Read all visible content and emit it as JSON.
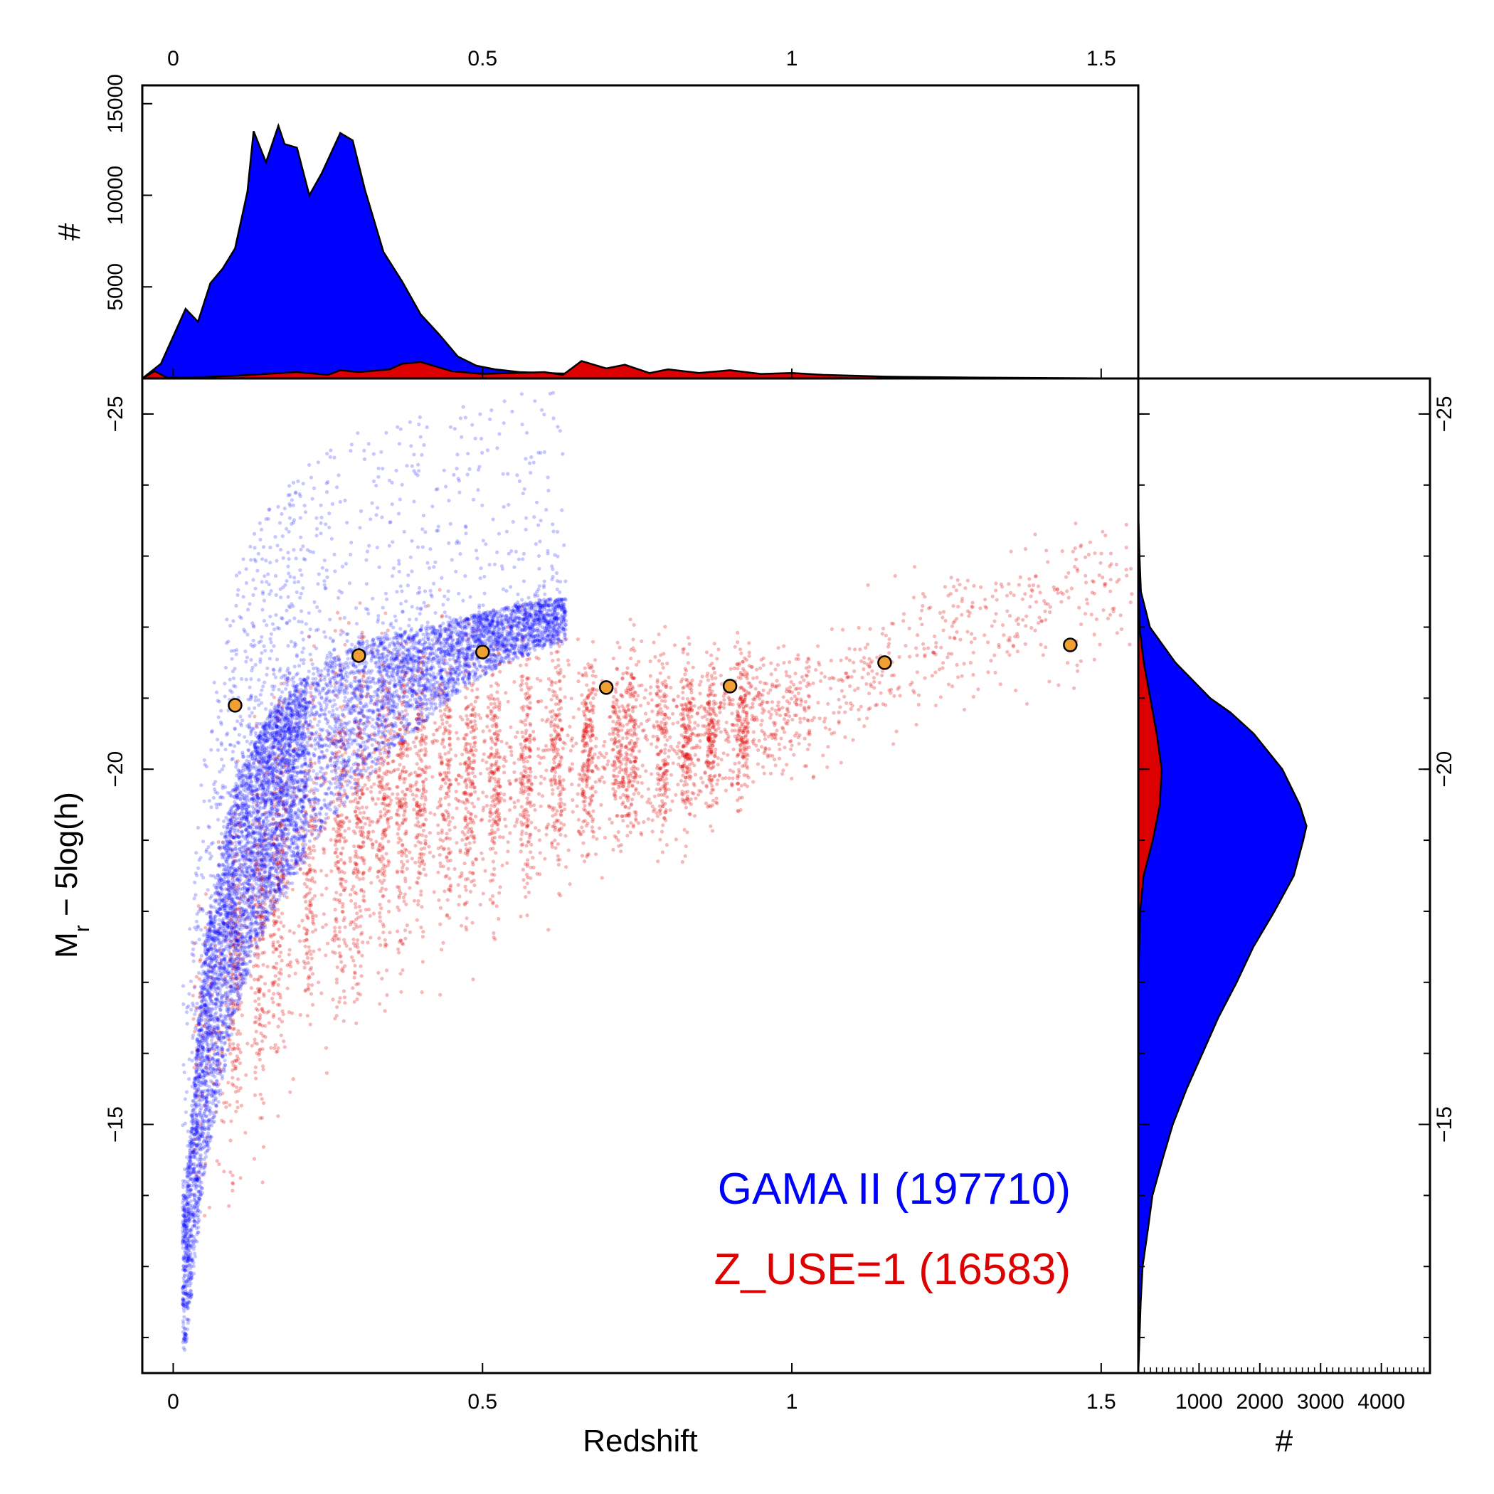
{
  "chart_data": [
    {
      "panel": "top-histogram",
      "type": "area",
      "xlabel": "",
      "ylabel": "#",
      "xlim": [
        -0.05,
        1.56
      ],
      "ylim": [
        0,
        16000
      ],
      "x_ticks": [
        0,
        0.5,
        1,
        1.5
      ],
      "x_tick_labels": [
        "0",
        "0.5",
        "1",
        "1.5"
      ],
      "y_ticks": [
        5000,
        10000,
        15000
      ],
      "y_tick_labels": [
        "5000",
        "10000",
        "15000"
      ],
      "series": [
        {
          "name": "GAMA II (197710)",
          "color": "#0000ff",
          "x": [
            -0.05,
            -0.02,
            0.0,
            0.02,
            0.04,
            0.06,
            0.08,
            0.1,
            0.12,
            0.13,
            0.15,
            0.17,
            0.18,
            0.2,
            0.22,
            0.24,
            0.27,
            0.29,
            0.31,
            0.34,
            0.37,
            0.4,
            0.43,
            0.46,
            0.49,
            0.52,
            0.56,
            0.6,
            0.7,
            0.8,
            0.9,
            1.0,
            1.1,
            1.2,
            1.3,
            1.4,
            1.5,
            1.56
          ],
          "values": [
            0,
            800,
            2300,
            3800,
            3100,
            5200,
            6000,
            7100,
            10200,
            13500,
            11800,
            13800,
            12800,
            12600,
            10000,
            11200,
            13400,
            13000,
            10300,
            6900,
            5300,
            3500,
            2400,
            1200,
            700,
            500,
            350,
            300,
            200,
            150,
            100,
            80,
            60,
            40,
            20,
            10,
            5,
            0
          ]
        },
        {
          "name": "Z_USE=1 (16583)",
          "color": "#dd0000",
          "x": [
            -0.05,
            -0.03,
            -0.01,
            0.05,
            0.1,
            0.15,
            0.2,
            0.25,
            0.27,
            0.3,
            0.35,
            0.37,
            0.4,
            0.45,
            0.5,
            0.55,
            0.6,
            0.63,
            0.66,
            0.7,
            0.73,
            0.77,
            0.8,
            0.85,
            0.9,
            0.95,
            1.0,
            1.05,
            1.1,
            1.15,
            1.2,
            1.3,
            1.4,
            1.5,
            1.56
          ],
          "values": [
            0,
            400,
            50,
            80,
            150,
            250,
            350,
            200,
            450,
            350,
            500,
            800,
            900,
            400,
            250,
            300,
            350,
            200,
            950,
            550,
            750,
            300,
            500,
            300,
            450,
            250,
            300,
            200,
            150,
            100,
            80,
            50,
            30,
            10,
            0
          ]
        }
      ]
    },
    {
      "panel": "main-scatter",
      "type": "scatter",
      "xlabel": "Redshift",
      "ylabel_main": "M",
      "ylabel_sub": "r",
      "ylabel_rest": " − 5log(h)",
      "xlim": [
        -0.05,
        1.56
      ],
      "ylim": [
        -11.5,
        -25.5
      ],
      "x_ticks": [
        0,
        0.5,
        1,
        1.5
      ],
      "x_tick_labels": [
        "0",
        "0.5",
        "1",
        "1.5"
      ],
      "y_ticks": [
        -15,
        -20,
        -25
      ],
      "y_tick_labels": [
        "−15",
        "−20",
        "−25"
      ],
      "series": [
        {
          "name": "GAMA II (197710)",
          "color": "#0000ff",
          "n_points": 197710,
          "envelope": {
            "z": [
              0.02,
              0.05,
              0.1,
              0.15,
              0.2,
              0.25,
              0.3,
              0.35,
              0.4,
              0.45,
              0.5,
              0.55,
              0.6,
              0.65
            ],
            "faint_limit": [
              -11.8,
              -14.2,
              -16.5,
              -17.8,
              -18.5,
              -19.2,
              -19.7,
              -20.2,
              -20.6,
              -21.0,
              -21.3,
              -21.5,
              -21.7,
              -21.8
            ],
            "dense_bright": [
              -14.0,
              -17.5,
              -19.8,
              -20.7,
              -21.2,
              -21.5,
              -21.8,
              -21.9,
              -22.0,
              -22.1,
              -22.2,
              -22.3,
              -22.4,
              -22.4
            ]
          }
        },
        {
          "name": "Z_USE=1 (16583)",
          "color": "#dd0000",
          "n_points": 16583,
          "envelope": {
            "z": [
              0.05,
              0.15,
              0.25,
              0.35,
              0.45,
              0.55,
              0.65,
              0.75,
              0.85,
              0.95,
              1.05,
              1.15,
              1.3,
              1.5
            ],
            "center": [
              -16.0,
              -18.0,
              -19.0,
              -19.6,
              -19.8,
              -20.0,
              -20.2,
              -20.3,
              -20.4,
              -20.7,
              -21.0,
              -21.4,
              -22.0,
              -22.5
            ],
            "spread": [
              1.5,
              1.6,
              1.5,
              1.3,
              1.2,
              1.1,
              0.9,
              0.8,
              0.7,
              0.6,
              0.6,
              0.6,
              0.6,
              0.6
            ]
          }
        },
        {
          "name": "markers",
          "color": "#f0a030",
          "x": [
            0.1,
            0.3,
            0.5,
            0.7,
            0.9,
            1.15,
            1.45
          ],
          "y": [
            -20.9,
            -21.6,
            -21.65,
            -21.15,
            -21.17,
            -21.5,
            -21.75
          ]
        }
      ],
      "legend": [
        {
          "text": "GAMA II (197710)",
          "color": "#0000ff"
        },
        {
          "text": "Z_USE=1 (16583)",
          "color": "#dd0000"
        }
      ],
      "legend_position": "bottom-right"
    },
    {
      "panel": "right-histogram",
      "type": "area",
      "xlabel": "#",
      "ylabel": "",
      "xlim": [
        0,
        4800
      ],
      "ylim": [
        -11.5,
        -25.5
      ],
      "x_ticks": [
        1000,
        2000,
        3000,
        4000
      ],
      "x_tick_labels": [
        "1000",
        "2000",
        "3000",
        "4000"
      ],
      "y_ticks": [
        -15,
        -20,
        -25
      ],
      "y_tick_labels": [
        "−15",
        "−20",
        "−25"
      ],
      "series": [
        {
          "name": "GAMA II (197710)",
          "color": "#0000ff",
          "y": [
            -11.5,
            -12.5,
            -13.0,
            -13.5,
            -14.0,
            -14.5,
            -15.0,
            -15.5,
            -16.0,
            -16.5,
            -17.0,
            -17.5,
            -18.0,
            -18.5,
            -19.0,
            -19.2,
            -19.5,
            -20.0,
            -20.5,
            -20.8,
            -21.0,
            -21.5,
            -22.0,
            -22.5,
            -23.0,
            -23.5,
            -24.0,
            -25.0,
            -25.5
          ],
          "values": [
            0,
            40,
            80,
            150,
            250,
            380,
            560,
            800,
            1050,
            1300,
            1600,
            1900,
            2250,
            2550,
            2700,
            2750,
            2650,
            2350,
            1900,
            1500,
            1200,
            600,
            200,
            60,
            20,
            5,
            2,
            0,
            0
          ]
        },
        {
          "name": "Z_USE=1 (16583)",
          "color": "#dd0000",
          "y": [
            -11.5,
            -17.0,
            -18.0,
            -18.5,
            -19.0,
            -19.5,
            -20.0,
            -20.5,
            -21.0,
            -21.5,
            -22.0,
            -23.0,
            -25.5
          ],
          "values": [
            0,
            0,
            30,
            100,
            230,
            350,
            400,
            320,
            200,
            80,
            20,
            0,
            0
          ]
        }
      ]
    }
  ]
}
